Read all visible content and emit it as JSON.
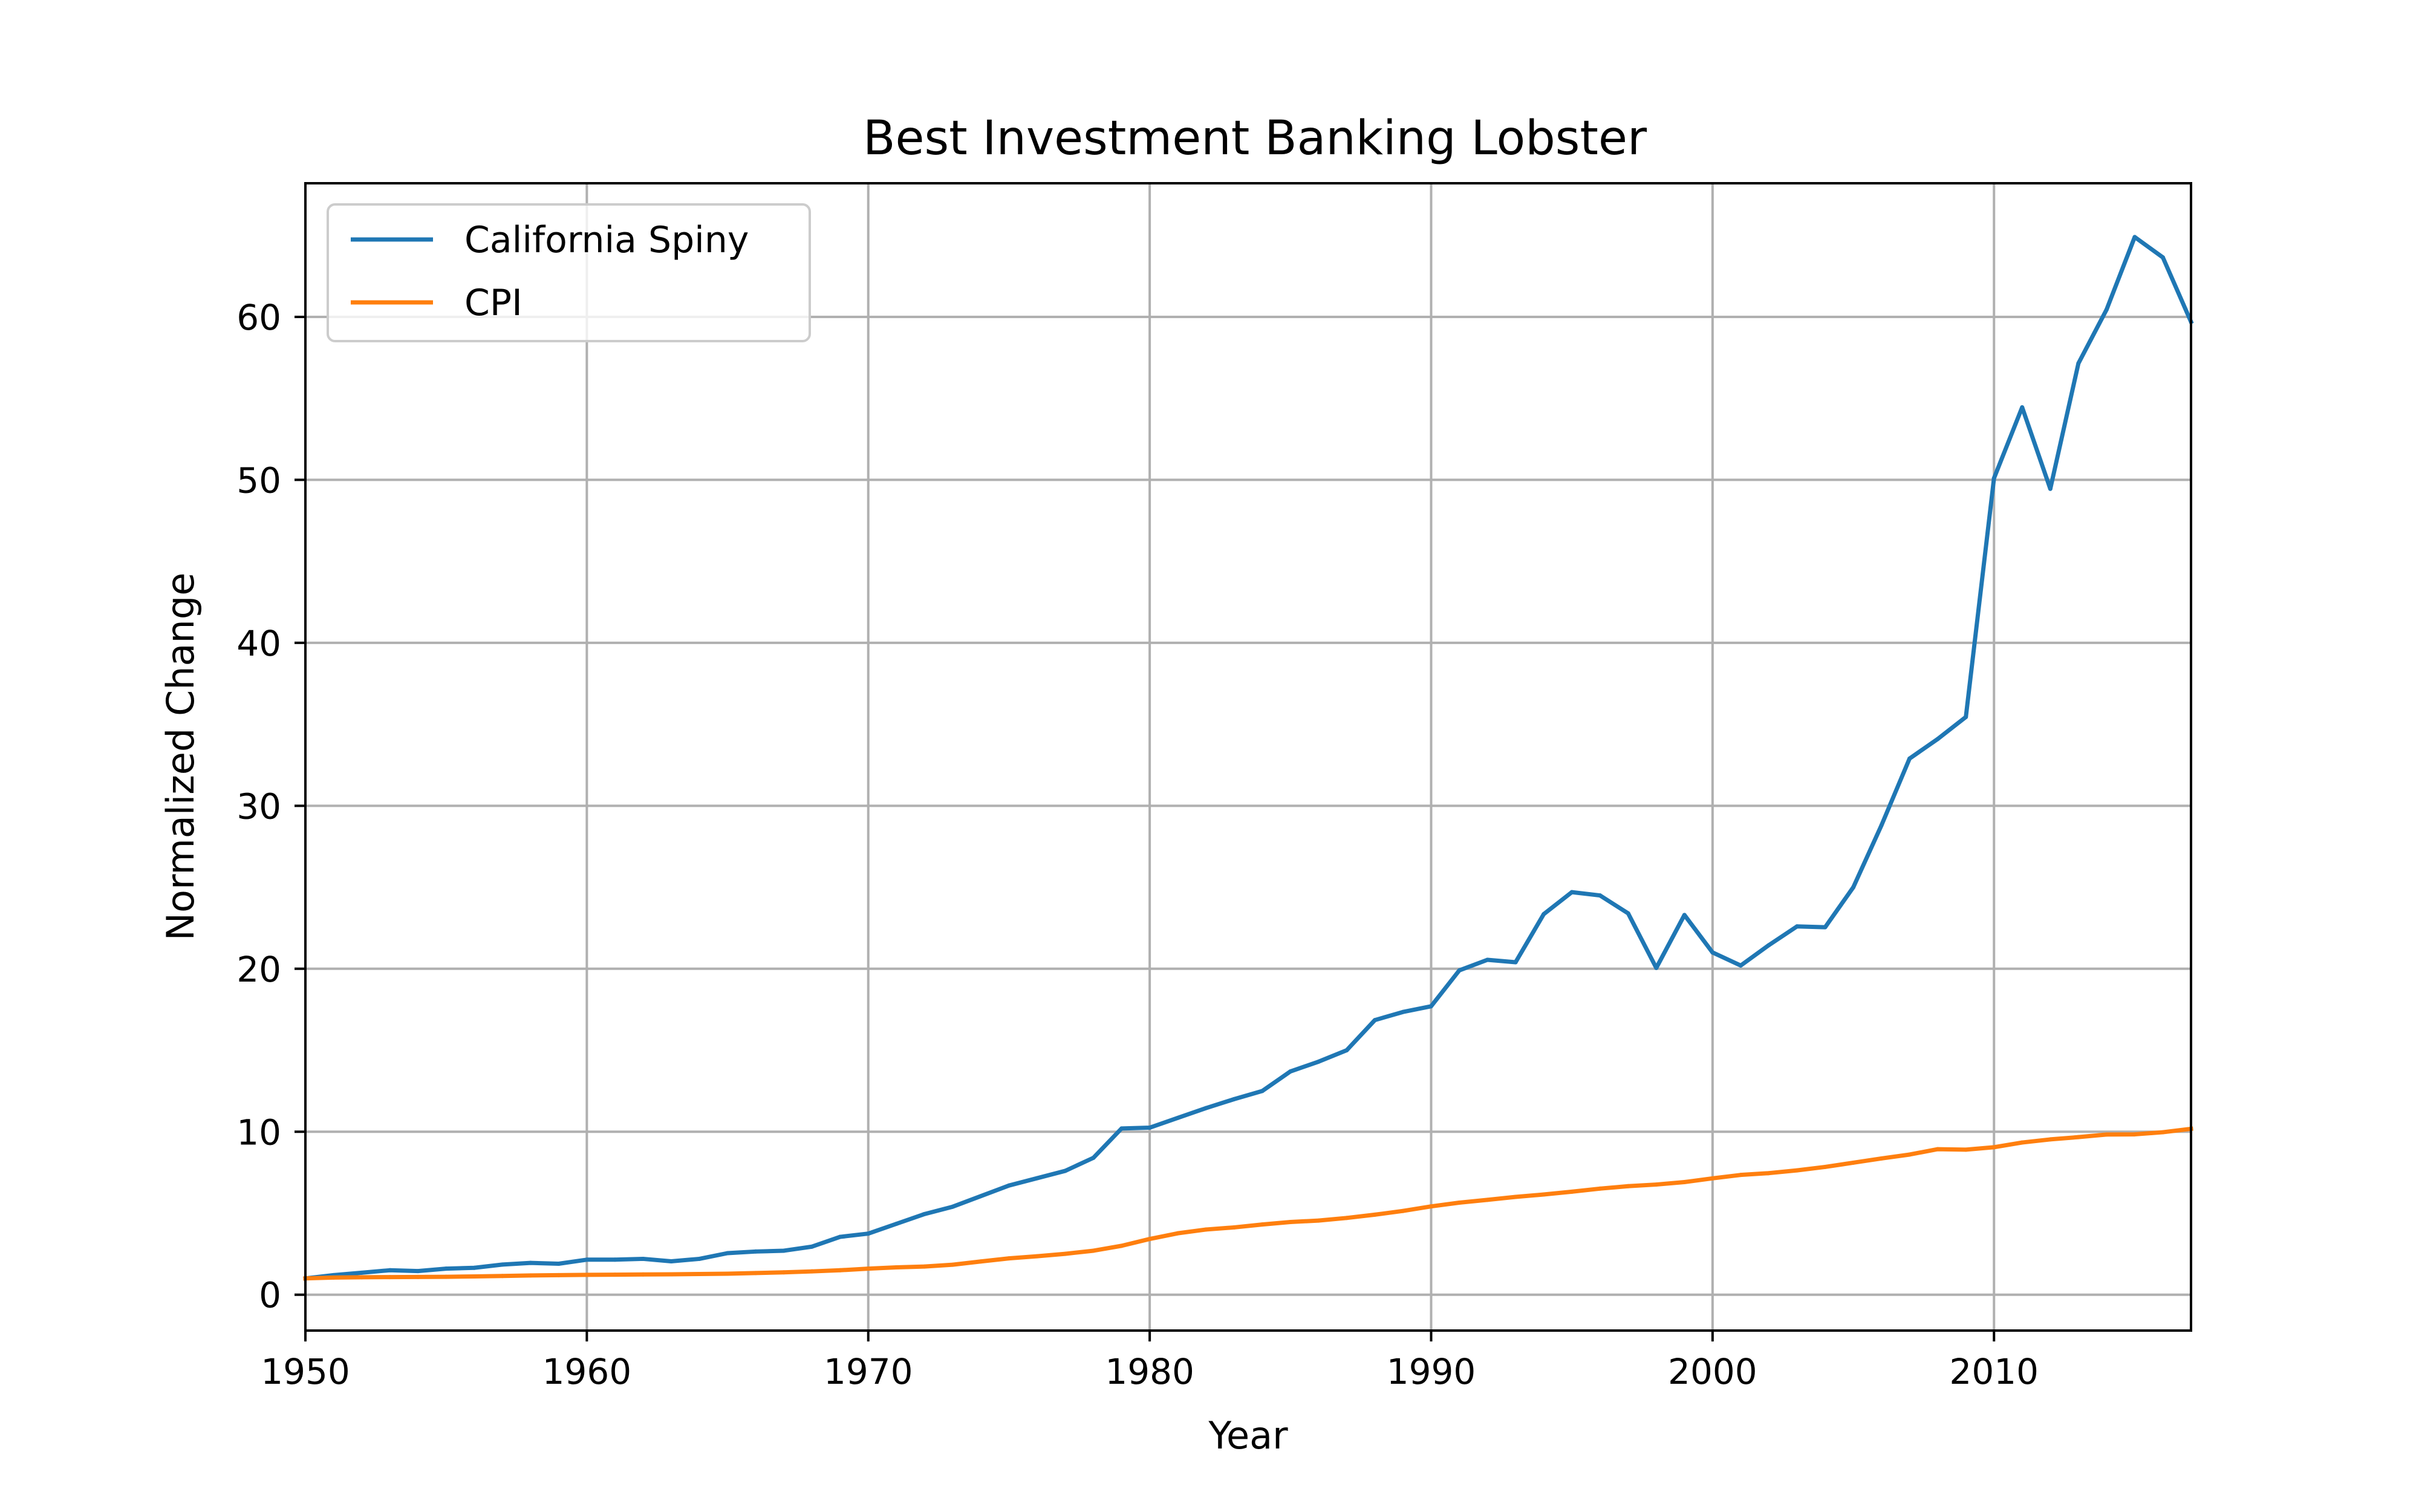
{
  "chart_data": {
    "type": "line",
    "title": "Best Investment Banking Lobster",
    "xlabel": "Year",
    "ylabel": "Normalized Change",
    "xlim": [
      1950,
      2017
    ],
    "ylim": [
      -2.2,
      68.2
    ],
    "xticks": [
      1950,
      1960,
      1970,
      1980,
      1990,
      2000,
      2010
    ],
    "yticks": [
      0,
      10,
      20,
      30,
      40,
      50,
      60
    ],
    "grid": true,
    "legend_position": "top-left",
    "x": [
      1950,
      1951,
      1952,
      1953,
      1954,
      1955,
      1956,
      1957,
      1958,
      1959,
      1960,
      1961,
      1962,
      1963,
      1964,
      1965,
      1966,
      1967,
      1968,
      1969,
      1970,
      1971,
      1972,
      1973,
      1974,
      1975,
      1976,
      1977,
      1978,
      1979,
      1980,
      1981,
      1982,
      1983,
      1984,
      1985,
      1986,
      1987,
      1988,
      1989,
      1990,
      1991,
      1992,
      1993,
      1994,
      1995,
      1996,
      1997,
      1998,
      1999,
      2000,
      2001,
      2002,
      2003,
      2004,
      2005,
      2006,
      2007,
      2008,
      2009,
      2010,
      2011,
      2012,
      2013,
      2014,
      2015,
      2016,
      2017
    ],
    "series": [
      {
        "name": "California Spiny",
        "color": "#1f77b4",
        "values": [
          1.0,
          1.2,
          1.35,
          1.5,
          1.45,
          1.6,
          1.65,
          1.85,
          1.95,
          1.9,
          2.15,
          2.15,
          2.2,
          2.05,
          2.2,
          2.55,
          2.65,
          2.7,
          2.95,
          3.55,
          3.75,
          4.35,
          4.95,
          5.4,
          6.05,
          6.7,
          7.15,
          7.6,
          8.4,
          10.2,
          10.25,
          10.85,
          11.45,
          12.0,
          12.5,
          13.7,
          14.3,
          15.0,
          16.85,
          17.35,
          17.7,
          19.9,
          20.55,
          20.4,
          23.35,
          24.7,
          24.5,
          23.4,
          20.05,
          23.3,
          21.0,
          20.2,
          21.45,
          22.6,
          22.55,
          25.0,
          28.8,
          32.9,
          34.1,
          35.45,
          50.1,
          54.45,
          49.45,
          57.15,
          60.45,
          64.9,
          63.65,
          59.7
        ]
      },
      {
        "name": "CPI",
        "color": "#ff7f0e",
        "values": [
          1.0,
          1.05,
          1.07,
          1.08,
          1.09,
          1.1,
          1.12,
          1.15,
          1.18,
          1.2,
          1.22,
          1.23,
          1.24,
          1.25,
          1.27,
          1.29,
          1.33,
          1.37,
          1.43,
          1.5,
          1.6,
          1.68,
          1.73,
          1.84,
          2.04,
          2.23,
          2.36,
          2.51,
          2.7,
          3.0,
          3.42,
          3.77,
          4.0,
          4.13,
          4.31,
          4.46,
          4.55,
          4.71,
          4.91,
          5.14,
          5.42,
          5.65,
          5.82,
          6.0,
          6.15,
          6.32,
          6.51,
          6.66,
          6.76,
          6.91,
          7.14,
          7.35,
          7.46,
          7.63,
          7.84,
          8.1,
          8.36,
          8.6,
          8.93,
          8.9,
          9.05,
          9.34,
          9.53,
          9.67,
          9.83,
          9.84,
          9.97,
          10.18
        ]
      }
    ]
  }
}
